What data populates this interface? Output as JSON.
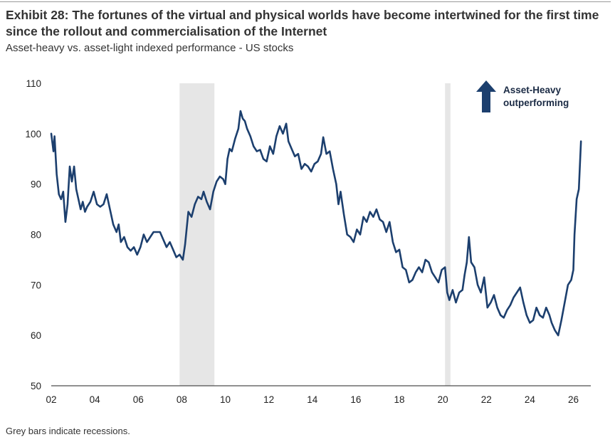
{
  "header": {
    "title": "Exhibit 28: The fortunes of the virtual and physical worlds have become intertwined for the first time since the rollout and commercialisation of the Internet",
    "subtitle": "Asset-heavy vs. asset-light indexed performance - US stocks"
  },
  "footnote": "Grey bars indicate recessions.",
  "colors": {
    "line": "#1c3f6e",
    "recession": "#e6e6e6",
    "arrow": "#1c3f6e"
  },
  "chart_data": {
    "type": "line",
    "title": "Exhibit 28: The fortunes of the virtual and physical worlds have become intertwined for the first time since the rollout and commercialisation of the Internet",
    "subtitle": "Asset-heavy vs. asset-light indexed performance - US stocks",
    "xlabel": "",
    "ylabel": "",
    "xlim": [
      2002,
      2026.8
    ],
    "ylim": [
      50,
      110
    ],
    "yticks": [
      50,
      60,
      70,
      80,
      90,
      100,
      110
    ],
    "xticks": [
      2002,
      2004,
      2006,
      2008,
      2010,
      2012,
      2014,
      2016,
      2018,
      2020,
      2022,
      2024,
      2026
    ],
    "xtick_labels": [
      "02",
      "04",
      "06",
      "08",
      "10",
      "12",
      "14",
      "16",
      "18",
      "20",
      "22",
      "24",
      "26"
    ],
    "grid": false,
    "recessions": [
      [
        2007.9,
        2009.5
      ],
      [
        2020.1,
        2020.35
      ]
    ],
    "annotation": {
      "text_line1": "Asset-Heavy",
      "text_line2": "outperforming"
    },
    "series": [
      {
        "x": [
          2002.0,
          2002.1,
          2002.15,
          2002.25,
          2002.35,
          2002.45,
          2002.55,
          2002.65,
          2002.75,
          2002.85,
          2002.95,
          2003.05,
          2003.15,
          2003.25,
          2003.35,
          2003.45,
          2003.55,
          2003.65,
          2003.8,
          2003.95,
          2004.1,
          2004.25,
          2004.4,
          2004.55,
          2004.7,
          2004.85,
          2005.0,
          2005.1,
          2005.2,
          2005.35,
          2005.5,
          2005.65,
          2005.8,
          2005.95,
          2006.1,
          2006.25,
          2006.4,
          2006.55,
          2006.7,
          2006.85,
          2007.0,
          2007.15,
          2007.3,
          2007.45,
          2007.6,
          2007.75,
          2007.9,
          2008.05,
          2008.15,
          2008.3,
          2008.45,
          2008.6,
          2008.75,
          2008.9,
          2009.0,
          2009.15,
          2009.3,
          2009.45,
          2009.6,
          2009.75,
          2009.9,
          2010.0,
          2010.1,
          2010.2,
          2010.3,
          2010.45,
          2010.6,
          2010.7,
          2010.8,
          2010.9,
          2011.0,
          2011.15,
          2011.3,
          2011.45,
          2011.6,
          2011.75,
          2011.9,
          2012.05,
          2012.2,
          2012.35,
          2012.5,
          2012.65,
          2012.8,
          2012.9,
          2013.05,
          2013.2,
          2013.35,
          2013.5,
          2013.65,
          2013.8,
          2013.95,
          2014.1,
          2014.25,
          2014.4,
          2014.5,
          2014.65,
          2014.8,
          2014.95,
          2015.1,
          2015.2,
          2015.3,
          2015.45,
          2015.6,
          2015.75,
          2015.9,
          2016.05,
          2016.2,
          2016.35,
          2016.5,
          2016.65,
          2016.8,
          2016.95,
          2017.1,
          2017.25,
          2017.4,
          2017.55,
          2017.7,
          2017.85,
          2018.0,
          2018.15,
          2018.3,
          2018.45,
          2018.6,
          2018.75,
          2018.9,
          2019.05,
          2019.2,
          2019.35,
          2019.5,
          2019.65,
          2019.8,
          2019.95,
          2020.1,
          2020.2,
          2020.3,
          2020.45,
          2020.6,
          2020.75,
          2020.9,
          2021.0,
          2021.1,
          2021.2,
          2021.3,
          2021.45,
          2021.6,
          2021.75,
          2021.9,
          2022.05,
          2022.2,
          2022.35,
          2022.5,
          2022.65,
          2022.8,
          2022.95,
          2023.1,
          2023.25,
          2023.4,
          2023.55,
          2023.7,
          2023.85,
          2024.0,
          2024.15,
          2024.3,
          2024.45,
          2024.6,
          2024.75,
          2024.9,
          2025.0,
          2025.15,
          2025.3,
          2025.45,
          2025.6,
          2025.75,
          2025.9,
          2026.0,
          2026.05,
          2026.15,
          2026.25,
          2026.35
        ],
        "values": [
          100,
          96.5,
          99.5,
          92,
          88,
          87,
          88.5,
          82.5,
          86,
          93.5,
          90.5,
          93.5,
          89,
          87,
          85,
          86.5,
          84.5,
          85.5,
          86.5,
          88.5,
          86,
          85.5,
          86,
          88,
          85,
          82,
          80.5,
          82,
          78.5,
          79.5,
          77.5,
          76.8,
          77.5,
          76,
          77.5,
          80,
          78.5,
          79.5,
          80.5,
          80.5,
          80.5,
          79,
          77.5,
          78.5,
          77,
          75.5,
          76,
          75,
          78,
          84.5,
          83.5,
          86,
          87.5,
          87,
          88.5,
          86.5,
          85,
          88.5,
          90.5,
          91.5,
          91,
          90,
          95,
          97,
          96.5,
          99,
          101,
          104.5,
          103,
          102.5,
          101,
          99.5,
          97.5,
          96.5,
          96.8,
          95,
          94.5,
          97.5,
          96,
          99.5,
          101.5,
          100,
          102,
          98.5,
          97,
          95.5,
          96,
          93,
          94,
          93.5,
          92.5,
          94,
          94.5,
          96,
          99.3,
          96,
          96.5,
          93,
          90,
          86,
          88.5,
          84,
          80,
          79.5,
          78.5,
          81,
          80,
          83.5,
          82.5,
          84.5,
          83.5,
          85,
          83,
          82.5,
          80.5,
          82.5,
          78.5,
          76.5,
          77,
          73.5,
          73,
          70.5,
          71,
          72.5,
          73.5,
          72.5,
          75,
          74.5,
          72.5,
          71.5,
          70.5,
          73,
          73.5,
          68.5,
          67,
          69,
          66.5,
          68.5,
          69,
          72,
          74.5,
          79.5,
          74.5,
          73.5,
          70,
          68.5,
          71.5,
          65.5,
          66.5,
          68,
          65.5,
          64,
          63.5,
          65,
          66,
          67.5,
          68.5,
          69.5,
          66.5,
          64,
          62.5,
          63,
          65.5,
          64,
          63.5,
          65.5,
          64,
          62.5,
          61,
          60,
          63,
          66.5,
          70,
          71,
          73,
          80,
          87,
          89,
          98.5
        ]
      }
    ]
  }
}
